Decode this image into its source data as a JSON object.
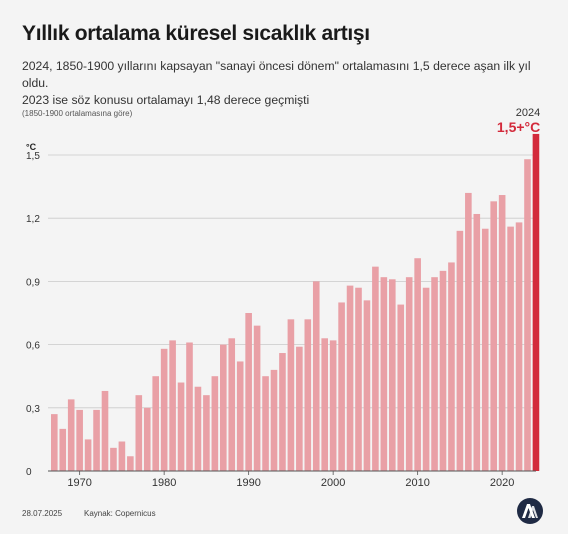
{
  "header": {
    "title": "Yıllık ortalama küresel sıcaklık artışı",
    "subtitle_line1": "2024, 1850-1900 yıllarını kapsayan \"sanayi öncesi dönem\" ortalamasını 1,5 derece aşan ilk yıl oldu.",
    "subtitle_line2": "2023 ise söz konusu ortalamayı 1,48 derece geçmişti",
    "note": "(1850-1900 ortalamasına göre)"
  },
  "footer": {
    "date": "28.07.2025",
    "source": "Kaynak: Copernicus",
    "logo_icon": "aa-logo-icon"
  },
  "colors": {
    "bar": "#e9a0a6",
    "highlight": "#d32a3b",
    "grid": "#c9c9c9",
    "background": "#f4f4f4"
  },
  "chart_data": {
    "type": "bar",
    "ylabel": "°C",
    "ylim": [
      0,
      1.6
    ],
    "yticks": [
      0,
      0.3,
      0.6,
      0.9,
      1.2,
      1.5
    ],
    "ytick_labels": [
      "0",
      "0,3",
      "0,6",
      "0,9",
      "1,2",
      "1,5"
    ],
    "xticks": [
      1970,
      1980,
      1990,
      2000,
      2010,
      2020
    ],
    "grid": true,
    "x": [
      1967,
      1968,
      1969,
      1970,
      1971,
      1972,
      1973,
      1974,
      1975,
      1976,
      1977,
      1978,
      1979,
      1980,
      1981,
      1982,
      1983,
      1984,
      1985,
      1986,
      1987,
      1988,
      1989,
      1990,
      1991,
      1992,
      1993,
      1994,
      1995,
      1996,
      1997,
      1998,
      1999,
      2000,
      2001,
      2002,
      2003,
      2004,
      2005,
      2006,
      2007,
      2008,
      2009,
      2010,
      2011,
      2012,
      2013,
      2014,
      2015,
      2016,
      2017,
      2018,
      2019,
      2020,
      2021,
      2022,
      2023,
      2024
    ],
    "values": [
      0.27,
      0.2,
      0.34,
      0.29,
      0.15,
      0.29,
      0.38,
      0.11,
      0.14,
      0.07,
      0.36,
      0.3,
      0.45,
      0.58,
      0.62,
      0.42,
      0.61,
      0.4,
      0.36,
      0.45,
      0.6,
      0.63,
      0.52,
      0.75,
      0.69,
      0.45,
      0.48,
      0.56,
      0.72,
      0.59,
      0.72,
      0.9,
      0.63,
      0.62,
      0.8,
      0.88,
      0.87,
      0.81,
      0.97,
      0.92,
      0.91,
      0.79,
      0.92,
      1.01,
      0.87,
      0.92,
      0.95,
      0.99,
      1.14,
      1.32,
      1.22,
      1.15,
      1.28,
      1.31,
      1.16,
      1.18,
      1.48,
      1.6
    ],
    "highlight": {
      "year_label": "2024",
      "value_label": "1,5+°C"
    }
  }
}
